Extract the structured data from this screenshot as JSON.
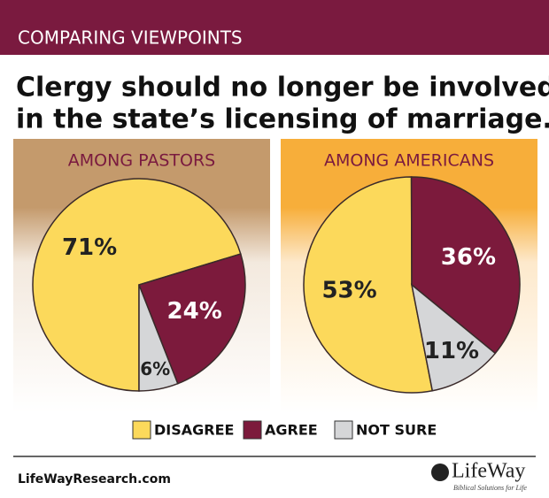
{
  "banner": "COMPARING VIEWPOINTS",
  "title": [
    "Clergy should no longer be involved",
    "in the state’s licensing of marriage."
  ],
  "chart_data": [
    {
      "type": "pie",
      "title": "AMONG PASTORS",
      "categories": [
        "DISAGREE",
        "AGREE",
        "NOT SURE"
      ],
      "values": [
        71,
        24,
        6
      ],
      "value_labels": [
        "71%",
        "24%",
        "6%"
      ],
      "colors": [
        "#fcd95b",
        "#7c1a3c",
        "#d5d6d8"
      ]
    },
    {
      "type": "pie",
      "title": "AMONG AMERICANS",
      "categories": [
        "DISAGREE",
        "AGREE",
        "NOT SURE"
      ],
      "values": [
        53,
        36,
        11
      ],
      "value_labels": [
        "53%",
        "36%",
        "11%"
      ],
      "colors": [
        "#fcd95b",
        "#7c1a3c",
        "#d5d6d8"
      ]
    }
  ],
  "footer": {
    "url": "LifeWayResearch.com",
    "logo": "LifeWay",
    "tagline": "Biblical Solutions for Life"
  }
}
